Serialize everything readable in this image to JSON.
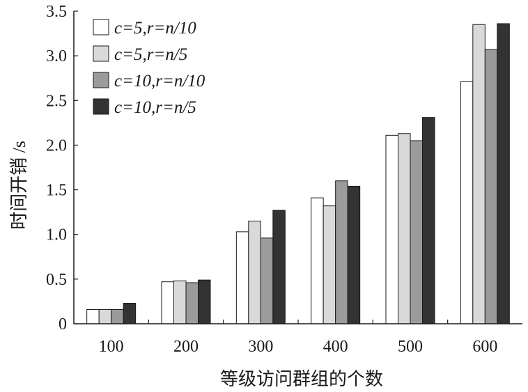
{
  "chart_data": {
    "type": "bar",
    "title": "",
    "xlabel": "等级访问群组的个数",
    "ylabel": "时间开销 /s",
    "categories": [
      "100",
      "200",
      "300",
      "400",
      "500",
      "600"
    ],
    "ylim": [
      0,
      3.5
    ],
    "yticks": [
      0,
      0.5,
      1.0,
      1.5,
      2.0,
      2.5,
      3.0,
      3.5
    ],
    "ytick_labels": [
      "0",
      "0.5",
      "1.0",
      "1.5",
      "2.0",
      "2.5",
      "3.0",
      "3.5"
    ],
    "grid": false,
    "legend_position": "top-left",
    "series": [
      {
        "name": "c=5,r=n/10",
        "color": "#ffffff",
        "values": [
          0.16,
          0.47,
          1.03,
          1.41,
          2.11,
          2.71
        ]
      },
      {
        "name": "c=5,r=n/5",
        "color": "#d9d9d9",
        "values": [
          0.16,
          0.48,
          1.15,
          1.32,
          2.13,
          3.35
        ]
      },
      {
        "name": "c=10,r=n/10",
        "color": "#9b9b9b",
        "values": [
          0.16,
          0.46,
          0.96,
          1.6,
          2.05,
          3.07
        ]
      },
      {
        "name": "c=10,r=n/5",
        "color": "#333333",
        "values": [
          0.23,
          0.49,
          1.27,
          1.54,
          2.31,
          3.36
        ]
      }
    ]
  }
}
